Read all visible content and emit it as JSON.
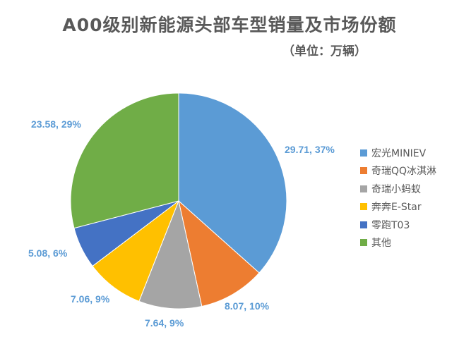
{
  "title": "A00级别新能源头部车型销量及市场份额",
  "subtitle": "（单位：万辆）",
  "chart_data": {
    "type": "pie",
    "title": "A00级别新能源头部车型销量及市场份额",
    "unit": "万辆",
    "categories": [
      "宏光MINIEV",
      "奇瑞QQ冰淇淋",
      "奇瑞小蚂蚁",
      "奔奔E-Star",
      "零跑T03",
      "其他"
    ],
    "values": [
      29.71,
      8.07,
      7.64,
      7.06,
      5.08,
      23.58
    ],
    "percents": [
      37,
      10,
      9,
      9,
      6,
      29
    ],
    "colors": [
      "#5b9bd5",
      "#ed7d31",
      "#a5a5a5",
      "#ffc000",
      "#4472c4",
      "#70ad47"
    ],
    "labels": [
      "29.71, 37%",
      "8.07, 10%",
      "7.64, 9%",
      "7.06, 9%",
      "5.08, 6%",
      "23.58, 29%"
    ],
    "legend_position": "right",
    "start_angle": "12 o'clock, clockwise"
  },
  "legend": [
    {
      "label": "宏光MINIEV",
      "color": "#5b9bd5"
    },
    {
      "label": "奇瑞QQ冰淇淋",
      "color": "#ed7d31"
    },
    {
      "label": "奇瑞小蚂蚁",
      "color": "#a5a5a5"
    },
    {
      "label": "奔奔E-Star",
      "color": "#ffc000"
    },
    {
      "label": "零跑T03",
      "color": "#4472c4"
    },
    {
      "label": "其他",
      "color": "#70ad47"
    }
  ]
}
